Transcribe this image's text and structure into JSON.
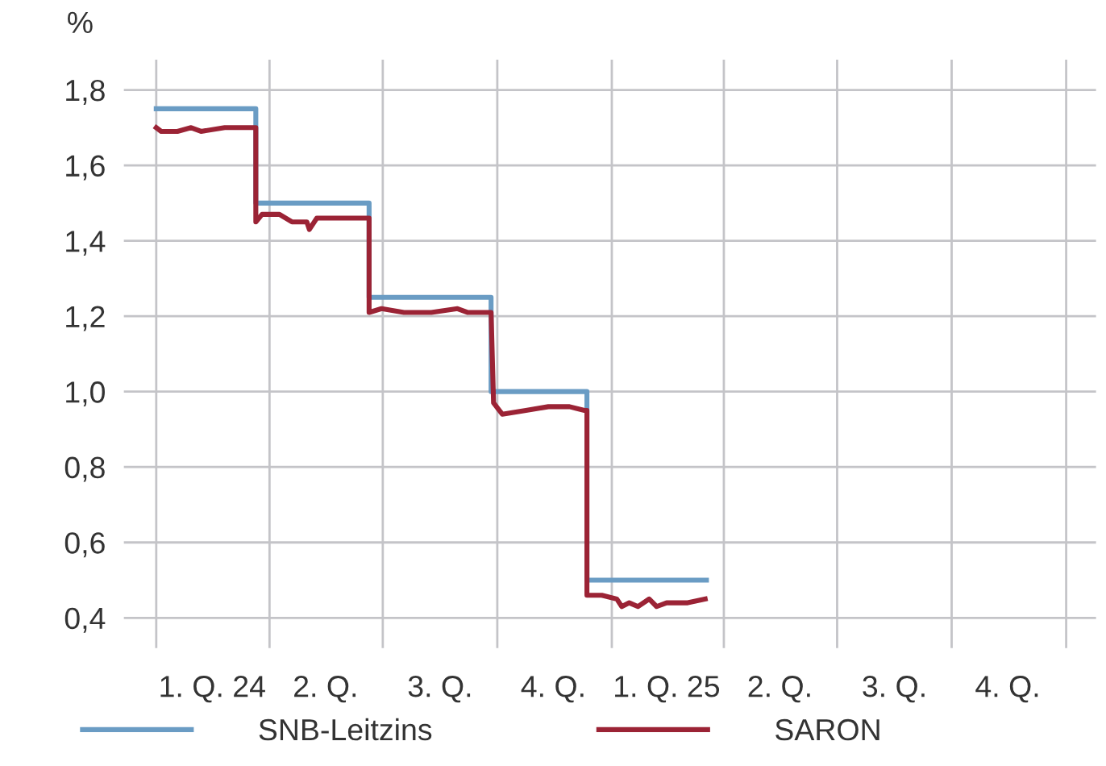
{
  "chart_data": {
    "type": "step",
    "ylabel": "%",
    "xlim": [
      "2023-12-06",
      "2026-01-25"
    ],
    "ylim": [
      0.32,
      1.88
    ],
    "yticks": [
      {
        "value": 0.4,
        "label": "0,4"
      },
      {
        "value": 0.6,
        "label": "0,6"
      },
      {
        "value": 0.8,
        "label": "0,8"
      },
      {
        "value": 1.0,
        "label": "1,0"
      },
      {
        "value": 1.2,
        "label": "1,2"
      },
      {
        "value": 1.4,
        "label": "1,4"
      },
      {
        "value": 1.6,
        "label": "1,6"
      },
      {
        "value": 1.8,
        "label": "1,8"
      }
    ],
    "xticks": [
      {
        "value": "2024-01-01",
        "label": null
      },
      {
        "value": "2024-04-01",
        "label": null
      },
      {
        "value": "2024-07-01",
        "label": null
      },
      {
        "value": "2024-10-01",
        "label": null
      },
      {
        "value": "2025-01-01",
        "label": null
      },
      {
        "value": "2025-04-01",
        "label": null
      },
      {
        "value": "2025-07-01",
        "label": null
      },
      {
        "value": "2025-10-01",
        "label": null
      },
      {
        "value": "2026-01-01",
        "label": null
      },
      {
        "value": "2024-02-15",
        "label": "1. Q. 24"
      },
      {
        "value": "2024-05-16",
        "label": "2. Q."
      },
      {
        "value": "2024-08-16",
        "label": "3. Q."
      },
      {
        "value": "2024-11-15",
        "label": "4. Q."
      },
      {
        "value": "2025-02-14",
        "label": "1. Q. 25"
      },
      {
        "value": "2025-05-16",
        "label": "2. Q."
      },
      {
        "value": "2025-08-16",
        "label": "3. Q."
      },
      {
        "value": "2025-11-15",
        "label": "4. Q."
      }
    ],
    "grid": true,
    "legend": "bottom",
    "marker": "none",
    "line_style": "solid",
    "series": [
      {
        "name": "SNB-Leitzins",
        "color": "#6a9cc4",
        "x": [
          "2024-01-01",
          "2024-03-21",
          "2024-06-20",
          "2024-09-26",
          "2024-12-12",
          "2025-03-18"
        ],
        "values": [
          1.75,
          1.5,
          1.25,
          1.0,
          0.5,
          0.5
        ]
      },
      {
        "name": "SARON",
        "type": "line",
        "color": "#9b2335",
        "x": [
          "2024-01-01",
          "2024-01-05",
          "2024-01-18",
          "2024-01-29",
          "2024-02-06",
          "2024-02-25",
          "2024-03-18",
          "2024-03-21",
          "2024-03-21",
          "2024-03-26",
          "2024-04-09",
          "2024-04-19",
          "2024-05-01",
          "2024-05-03",
          "2024-05-09",
          "2024-05-30",
          "2024-06-17",
          "2024-06-20",
          "2024-06-20",
          "2024-06-30",
          "2024-07-18",
          "2024-08-09",
          "2024-08-30",
          "2024-09-07",
          "2024-09-25",
          "2024-09-26",
          "2024-09-28",
          "2024-10-05",
          "2024-10-24",
          "2024-11-11",
          "2024-11-28",
          "2024-12-10",
          "2024-12-12",
          "2024-12-12",
          "2024-12-24",
          "2025-01-05",
          "2025-01-09",
          "2025-01-15",
          "2025-01-22",
          "2025-01-31",
          "2025-02-06",
          "2025-02-14",
          "2025-03-03",
          "2025-03-17"
        ],
        "values": [
          1.7,
          1.69,
          1.69,
          1.7,
          1.69,
          1.7,
          1.7,
          1.7,
          1.45,
          1.47,
          1.47,
          1.45,
          1.45,
          1.43,
          1.46,
          1.46,
          1.46,
          1.46,
          1.21,
          1.22,
          1.21,
          1.21,
          1.22,
          1.21,
          1.21,
          1.21,
          0.97,
          0.94,
          0.95,
          0.96,
          0.96,
          0.95,
          0.95,
          0.46,
          0.46,
          0.45,
          0.43,
          0.44,
          0.43,
          0.45,
          0.43,
          0.44,
          0.44,
          0.45
        ]
      }
    ]
  }
}
